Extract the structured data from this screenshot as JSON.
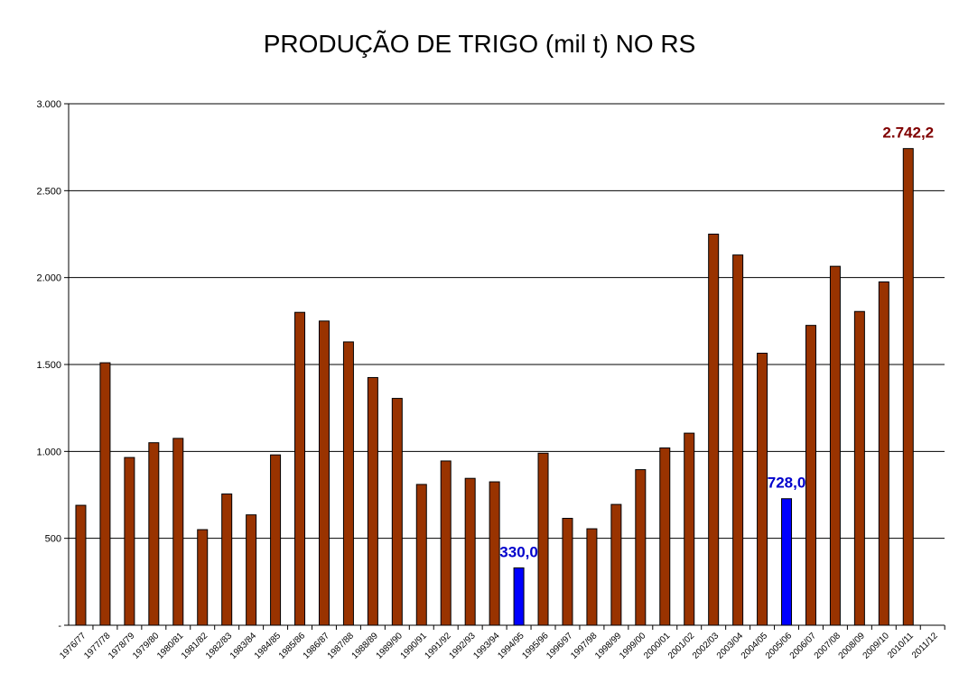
{
  "chart_data": {
    "type": "bar",
    "title": "PRODUÇÃO DE TRIGO (mil t) NO RS",
    "xlabel": "",
    "ylabel": "",
    "ylim": [
      0,
      3000
    ],
    "yticks": [
      0,
      500,
      1000,
      1500,
      2000,
      2500,
      3000
    ],
    "ytick_labels": [
      "-",
      "500",
      "1.000",
      "1.500",
      "2.000",
      "2.500",
      "3.000"
    ],
    "grid": true,
    "bar_color": "#993300",
    "highlight_color": "#0000FF",
    "categories": [
      "1976/77",
      "1977/78",
      "1978/79",
      "1979/80",
      "1980/81",
      "1981/82",
      "1982/83",
      "1983/84",
      "1984/85",
      "1985/86",
      "1986/87",
      "1987/88",
      "1988/89",
      "1989/90",
      "1990/91",
      "1991/92",
      "1992/93",
      "1993/94",
      "1994/95",
      "1995/96",
      "1996/97",
      "1997/98",
      "1998/99",
      "1999/00",
      "2000/01",
      "2001/02",
      "2002/03",
      "2003/04",
      "2004/05",
      "2005/06",
      "2006/07",
      "2007/08",
      "2008/09",
      "2009/10",
      "2010/11",
      "2011/12"
    ],
    "values": [
      690,
      1510,
      965,
      1050,
      1075,
      550,
      755,
      635,
      980,
      1800,
      1750,
      1630,
      1425,
      1305,
      810,
      945,
      845,
      825,
      330,
      990,
      615,
      555,
      695,
      895,
      1020,
      1105,
      2250,
      2130,
      1565,
      728,
      1725,
      2065,
      1805,
      1975,
      2742.2,
      null
    ],
    "highlighted": [
      "1994/95",
      "2005/06"
    ],
    "annotations": [
      {
        "category": "1994/95",
        "text": "330,0",
        "color": "#0000CC"
      },
      {
        "category": "2005/06",
        "text": "728,0",
        "color": "#0000CC"
      },
      {
        "category": "2010/11",
        "text": "2.742,2",
        "color": "#800000"
      }
    ]
  }
}
